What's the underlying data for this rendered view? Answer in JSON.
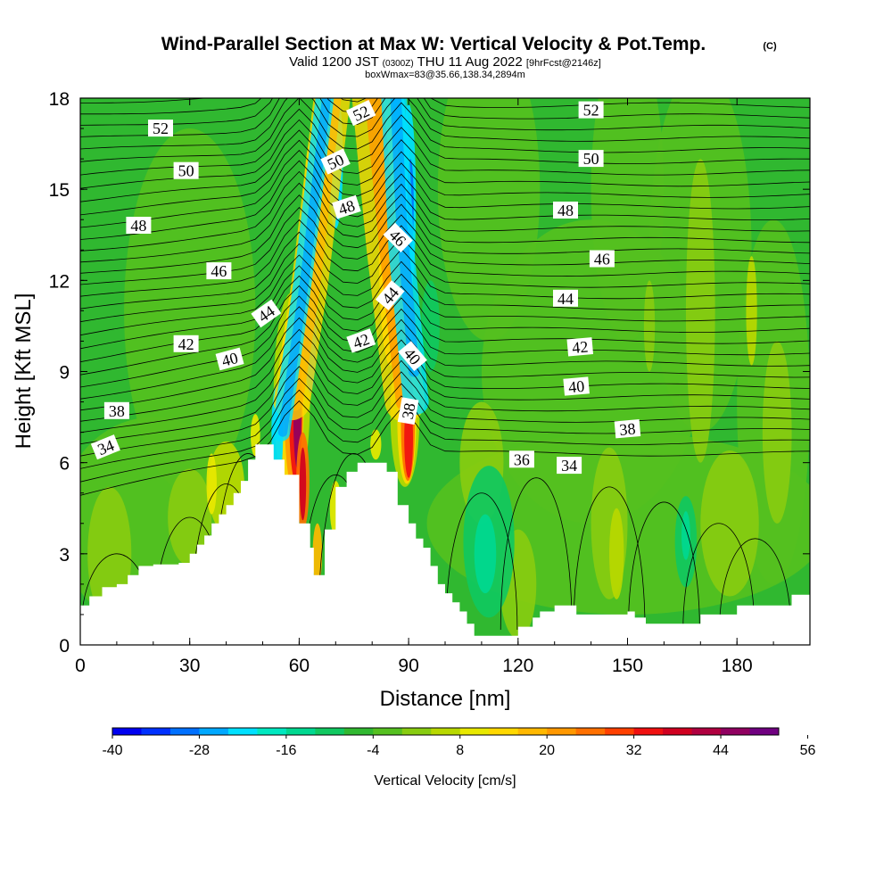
{
  "chart_data": {
    "type": "heatmap",
    "title": "Wind-Parallel Section at Max W: Vertical Velocity & Pot.Temp.",
    "title_mark": "(C)",
    "subtitle": {
      "valid": "Valid 1200 JST",
      "utc": "(0300Z)",
      "date": "THU 11 Aug 2022",
      "fcst": "[9hrFcst@2146z]"
    },
    "info_line": "boxWmax=83@35.66,138.34,2894m",
    "xlabel": "Distance [nm]",
    "ylabel": "Height [Kft MSL]",
    "xlim": [
      0,
      200
    ],
    "ylim": [
      0,
      18
    ],
    "x_ticks": [
      "0",
      "30",
      "60",
      "90",
      "120",
      "150",
      "180"
    ],
    "y_ticks": [
      "0",
      "3",
      "6",
      "9",
      "12",
      "15",
      "18"
    ],
    "colorbar": {
      "label": "Vertical Velocity [cm/s]",
      "tick_labels": [
        "-40",
        "-28",
        "-16",
        "-4",
        "8",
        "20",
        "32",
        "44",
        "56"
      ],
      "colors": [
        "#0000f0",
        "#0030ff",
        "#0070ff",
        "#00a8ff",
        "#00e0ff",
        "#00e8c0",
        "#00d890",
        "#10c860",
        "#30b830",
        "#55c020",
        "#88cc10",
        "#b8d800",
        "#e8e800",
        "#ffd800",
        "#ffb800",
        "#ff9800",
        "#ff7000",
        "#ff4000",
        "#f01010",
        "#d00020",
        "#b00040",
        "#900060",
        "#700080"
      ]
    },
    "terrain": [
      [
        0,
        1.3
      ],
      [
        2.5,
        1.3
      ],
      [
        2.5,
        1.6
      ],
      [
        6,
        1.6
      ],
      [
        6,
        1.9
      ],
      [
        10,
        1.9
      ],
      [
        10,
        2.0
      ],
      [
        13,
        2.0
      ],
      [
        13,
        2.3
      ],
      [
        16,
        2.3
      ],
      [
        16,
        2.6
      ],
      [
        20,
        2.6
      ],
      [
        20,
        2.65
      ],
      [
        27,
        2.65
      ],
      [
        27,
        2.7
      ],
      [
        30,
        2.7
      ],
      [
        30,
        3.0
      ],
      [
        32,
        3.0
      ],
      [
        32,
        3.3
      ],
      [
        34,
        3.3
      ],
      [
        34,
        3.6
      ],
      [
        36,
        3.6
      ],
      [
        36,
        4.0
      ],
      [
        38,
        4.0
      ],
      [
        38,
        4.3
      ],
      [
        40,
        4.3
      ],
      [
        40,
        4.6
      ],
      [
        42,
        4.6
      ],
      [
        42,
        5.0
      ],
      [
        44,
        5.0
      ],
      [
        44,
        5.4
      ],
      [
        46,
        5.4
      ],
      [
        46,
        6.1
      ],
      [
        48,
        6.1
      ],
      [
        48,
        6.6
      ],
      [
        53,
        6.6
      ],
      [
        53,
        6.1
      ],
      [
        56,
        6.1
      ],
      [
        56,
        5.6
      ],
      [
        60,
        5.6
      ],
      [
        60,
        4.0
      ],
      [
        63,
        4.0
      ],
      [
        63,
        3.2
      ],
      [
        64,
        3.2
      ],
      [
        64,
        2.3
      ],
      [
        67,
        2.3
      ],
      [
        67,
        3.8
      ],
      [
        70,
        3.8
      ],
      [
        70,
        5.2
      ],
      [
        73,
        5.2
      ],
      [
        73,
        5.7
      ],
      [
        76,
        5.7
      ],
      [
        76,
        6.0
      ],
      [
        84,
        6.0
      ],
      [
        84,
        5.7
      ],
      [
        87,
        5.7
      ],
      [
        87,
        4.6
      ],
      [
        90,
        4.6
      ],
      [
        90,
        4.0
      ],
      [
        92,
        4.0
      ],
      [
        92,
        3.5
      ],
      [
        94,
        3.5
      ],
      [
        94,
        3.2
      ],
      [
        96,
        3.2
      ],
      [
        96,
        2.6
      ],
      [
        98,
        2.6
      ],
      [
        98,
        2.0
      ],
      [
        100,
        2.0
      ],
      [
        100,
        1.7
      ],
      [
        102,
        1.7
      ],
      [
        102,
        1.4
      ],
      [
        104,
        1.4
      ],
      [
        104,
        1.1
      ],
      [
        106,
        1.1
      ],
      [
        106,
        0.7
      ],
      [
        108,
        0.7
      ],
      [
        108,
        0.3
      ],
      [
        120,
        0.3
      ],
      [
        120,
        0.6
      ],
      [
        124,
        0.6
      ],
      [
        124,
        0.9
      ],
      [
        126,
        0.9
      ],
      [
        126,
        1.1
      ],
      [
        130,
        1.1
      ],
      [
        130,
        1.3
      ],
      [
        136,
        1.3
      ],
      [
        136,
        1.0
      ],
      [
        150,
        1.0
      ],
      [
        150,
        1.1
      ],
      [
        152,
        1.1
      ],
      [
        152,
        0.9
      ],
      [
        155,
        0.9
      ],
      [
        155,
        0.7
      ],
      [
        170,
        0.7
      ],
      [
        170,
        1.0
      ],
      [
        180,
        1.0
      ],
      [
        180,
        1.3
      ],
      [
        195,
        1.3
      ],
      [
        195,
        1.65
      ],
      [
        200,
        1.65
      ]
    ],
    "contour_labels": [
      {
        "v": "52",
        "x": 22,
        "y": 17.0,
        "a": 0
      },
      {
        "v": "50",
        "x": 29,
        "y": 15.6,
        "a": 0
      },
      {
        "v": "48",
        "x": 16,
        "y": 13.8,
        "a": 0
      },
      {
        "v": "46",
        "x": 38,
        "y": 12.3,
        "a": 0
      },
      {
        "v": "44",
        "x": 51,
        "y": 10.9,
        "a": -35
      },
      {
        "v": "42",
        "x": 29,
        "y": 9.9,
        "a": 0
      },
      {
        "v": "40",
        "x": 41,
        "y": 9.4,
        "a": -15
      },
      {
        "v": "38",
        "x": 10,
        "y": 7.7,
        "a": 0
      },
      {
        "v": "34",
        "x": 7,
        "y": 6.5,
        "a": -22
      },
      {
        "v": "52",
        "x": 77,
        "y": 17.5,
        "a": -25
      },
      {
        "v": "50",
        "x": 70,
        "y": 15.9,
        "a": -25
      },
      {
        "v": "48",
        "x": 73,
        "y": 14.4,
        "a": -18
      },
      {
        "v": "46",
        "x": 87,
        "y": 13.4,
        "a": 45
      },
      {
        "v": "44",
        "x": 85,
        "y": 11.5,
        "a": -50
      },
      {
        "v": "42",
        "x": 77,
        "y": 10.0,
        "a": -20
      },
      {
        "v": "40",
        "x": 91,
        "y": 9.5,
        "a": 50
      },
      {
        "v": "38",
        "x": 90,
        "y": 7.7,
        "a": -80
      },
      {
        "v": "52",
        "x": 140,
        "y": 17.6,
        "a": 0
      },
      {
        "v": "50",
        "x": 140,
        "y": 16.0,
        "a": 0
      },
      {
        "v": "48",
        "x": 133,
        "y": 14.3,
        "a": 0
      },
      {
        "v": "46",
        "x": 143,
        "y": 12.7,
        "a": 0
      },
      {
        "v": "44",
        "x": 133,
        "y": 11.4,
        "a": 0
      },
      {
        "v": "42",
        "x": 137,
        "y": 9.8,
        "a": -5
      },
      {
        "v": "40",
        "x": 136,
        "y": 8.5,
        "a": -5
      },
      {
        "v": "38",
        "x": 150,
        "y": 7.1,
        "a": -5
      },
      {
        "v": "36",
        "x": 121,
        "y": 6.1,
        "a": 0
      },
      {
        "v": "34",
        "x": 134,
        "y": 5.9,
        "a": 0
      }
    ]
  }
}
